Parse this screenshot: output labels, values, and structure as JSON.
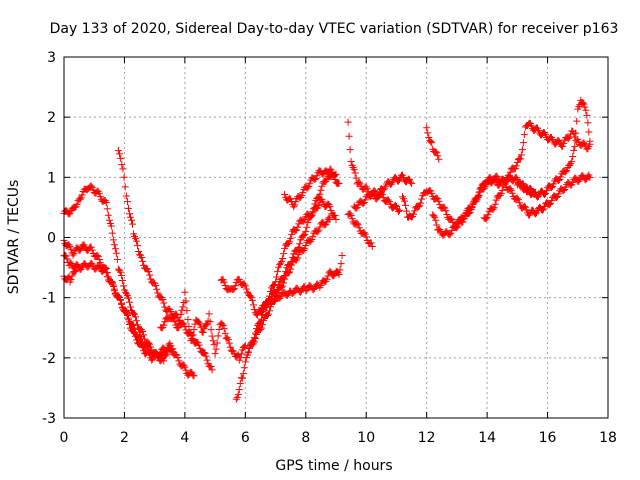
{
  "chart_data": {
    "type": "scatter",
    "title": "Day 133 of 2020, Sidereal Day-to-day VTEC variation (SDTVAR) for receiver p163",
    "xlabel": "GPS time / hours",
    "ylabel": "SDTVAR / TECUs",
    "xlim": [
      0,
      18
    ],
    "ylim": [
      -3,
      3
    ],
    "xticks": [
      "0",
      "2",
      "4",
      "6",
      "8",
      "10",
      "12",
      "14",
      "16",
      "18"
    ],
    "yticks": [
      "-3",
      "-2",
      "-1",
      "0",
      "1",
      "2",
      "3"
    ],
    "grid": true,
    "marker": "+",
    "color": "#ff0000",
    "series": [
      {
        "name": "arc-1",
        "points": [
          [
            0.0,
            0.4
          ],
          [
            0.3,
            0.45
          ],
          [
            0.5,
            0.65
          ],
          [
            0.8,
            0.85
          ],
          [
            1.1,
            0.75
          ],
          [
            1.4,
            0.55
          ],
          [
            1.6,
            0.1
          ],
          [
            1.8,
            -0.5
          ],
          [
            2.1,
            -1.0
          ],
          [
            2.4,
            -1.4
          ],
          [
            2.7,
            -1.7
          ],
          [
            3.0,
            -1.95
          ],
          [
            3.3,
            -2.05
          ]
        ]
      },
      {
        "name": "arc-2",
        "points": [
          [
            0.0,
            -0.05
          ],
          [
            0.3,
            -0.25
          ],
          [
            0.6,
            -0.15
          ],
          [
            0.9,
            -0.2
          ],
          [
            1.2,
            -0.4
          ],
          [
            1.5,
            -0.7
          ],
          [
            1.8,
            -1.0
          ],
          [
            2.1,
            -1.3
          ],
          [
            2.4,
            -1.6
          ],
          [
            2.7,
            -1.8
          ],
          [
            3.0,
            -1.95
          ],
          [
            3.3,
            -1.95
          ],
          [
            3.6,
            -1.85
          ]
        ]
      },
      {
        "name": "arc-3",
        "points": [
          [
            0.0,
            -0.3
          ],
          [
            0.2,
            -0.45
          ],
          [
            0.5,
            -0.5
          ],
          [
            0.8,
            -0.45
          ],
          [
            1.1,
            -0.5
          ],
          [
            1.4,
            -0.55
          ],
          [
            1.7,
            -0.9
          ],
          [
            2.0,
            -1.2
          ],
          [
            2.3,
            -1.6
          ],
          [
            2.6,
            -1.85
          ],
          [
            2.9,
            -2.0
          ],
          [
            3.2,
            -1.9
          ],
          [
            3.5,
            -1.8
          ],
          [
            3.8,
            -2.05
          ],
          [
            4.1,
            -2.25
          ],
          [
            4.3,
            -2.3
          ]
        ]
      },
      {
        "name": "arc-4",
        "points": [
          [
            0.0,
            -0.65
          ],
          [
            0.2,
            -0.7
          ],
          [
            0.4,
            -0.55
          ]
        ]
      },
      {
        "name": "arc-5",
        "points": [
          [
            1.8,
            1.45
          ],
          [
            1.95,
            1.1
          ],
          [
            2.1,
            0.6
          ],
          [
            2.3,
            0.1
          ],
          [
            2.5,
            -0.3
          ],
          [
            2.8,
            -0.6
          ],
          [
            3.1,
            -0.9
          ],
          [
            3.4,
            -1.2
          ],
          [
            3.7,
            -1.3
          ],
          [
            4.0,
            -1.5
          ],
          [
            4.3,
            -1.7
          ],
          [
            4.6,
            -1.9
          ],
          [
            4.9,
            -2.2
          ]
        ]
      },
      {
        "name": "arc-6",
        "points": [
          [
            3.2,
            -1.5
          ],
          [
            3.5,
            -1.3
          ],
          [
            3.8,
            -1.5
          ],
          [
            4.0,
            -0.95
          ],
          [
            4.2,
            -1.7
          ],
          [
            4.4,
            -1.35
          ],
          [
            4.6,
            -1.6
          ],
          [
            4.8,
            -1.3
          ],
          [
            5.0,
            -1.9
          ],
          [
            5.2,
            -1.4
          ],
          [
            5.4,
            -1.7
          ],
          [
            5.6,
            -1.9
          ],
          [
            5.8,
            -2.0
          ],
          [
            6.0,
            -1.8
          ]
        ]
      },
      {
        "name": "arc-7",
        "points": [
          [
            5.2,
            -0.7
          ],
          [
            5.5,
            -0.9
          ],
          [
            5.8,
            -0.7
          ],
          [
            6.1,
            -0.9
          ],
          [
            6.4,
            -1.3
          ],
          [
            6.7,
            -1.1
          ],
          [
            7.0,
            -0.9
          ],
          [
            7.3,
            -0.6
          ],
          [
            7.6,
            -0.3
          ],
          [
            7.9,
            0.0
          ],
          [
            8.2,
            0.4
          ],
          [
            8.5,
            0.8
          ],
          [
            8.8,
            1.1
          ],
          [
            9.0,
            1.05
          ]
        ]
      },
      {
        "name": "arc-8",
        "points": [
          [
            5.7,
            -2.7
          ],
          [
            5.9,
            -2.3
          ],
          [
            6.1,
            -1.9
          ],
          [
            6.4,
            -1.5
          ],
          [
            6.7,
            -1.1
          ],
          [
            7.0,
            -0.7
          ],
          [
            7.3,
            -0.2
          ],
          [
            7.6,
            0.1
          ],
          [
            7.9,
            0.3
          ],
          [
            8.2,
            0.4
          ],
          [
            8.5,
            0.6
          ],
          [
            8.8,
            0.5
          ],
          [
            9.0,
            0.3
          ]
        ]
      },
      {
        "name": "arc-9",
        "points": [
          [
            6.1,
            -1.9
          ],
          [
            6.4,
            -1.6
          ],
          [
            6.7,
            -1.3
          ],
          [
            7.0,
            -1.0
          ],
          [
            7.3,
            -0.7
          ],
          [
            7.6,
            -0.4
          ],
          [
            7.9,
            -0.2
          ],
          [
            8.2,
            0.0
          ],
          [
            8.5,
            0.2
          ],
          [
            8.8,
            0.3
          ]
        ]
      },
      {
        "name": "arc-10",
        "points": [
          [
            7.3,
            0.7
          ],
          [
            7.6,
            0.55
          ],
          [
            7.9,
            0.75
          ],
          [
            8.2,
            0.95
          ],
          [
            8.5,
            1.1
          ],
          [
            8.8,
            1.05
          ],
          [
            9.1,
            0.9
          ]
        ]
      },
      {
        "name": "arc-11",
        "points": [
          [
            6.5,
            -1.2
          ],
          [
            7.0,
            -1.0
          ],
          [
            7.5,
            -0.9
          ],
          [
            8.0,
            -0.85
          ],
          [
            8.5,
            -0.8
          ],
          [
            8.8,
            -0.6
          ],
          [
            9.1,
            -0.6
          ],
          [
            9.2,
            -0.3
          ]
        ]
      },
      {
        "name": "arc-12",
        "points": [
          [
            9.4,
            1.9
          ],
          [
            9.5,
            1.3
          ],
          [
            9.7,
            0.9
          ],
          [
            10.0,
            0.8
          ],
          [
            10.3,
            0.65
          ],
          [
            10.6,
            0.85
          ],
          [
            10.9,
            0.95
          ],
          [
            11.2,
            1.0
          ],
          [
            11.5,
            0.9
          ]
        ]
      },
      {
        "name": "arc-13",
        "points": [
          [
            9.4,
            0.4
          ],
          [
            9.7,
            0.2
          ],
          [
            10.0,
            0.0
          ],
          [
            10.2,
            -0.15
          ]
        ]
      },
      {
        "name": "arc-14",
        "points": [
          [
            9.6,
            0.5
          ],
          [
            9.9,
            0.6
          ],
          [
            10.2,
            0.75
          ],
          [
            10.5,
            0.7
          ],
          [
            10.8,
            0.55
          ],
          [
            11.1,
            0.45
          ]
        ]
      },
      {
        "name": "arc-15",
        "points": [
          [
            11.2,
            0.7
          ],
          [
            11.4,
            0.3
          ],
          [
            11.7,
            0.5
          ],
          [
            12.0,
            0.8
          ],
          [
            12.3,
            0.65
          ],
          [
            12.6,
            0.45
          ],
          [
            12.9,
            0.2
          ],
          [
            13.2,
            0.3
          ],
          [
            13.5,
            0.5
          ],
          [
            13.8,
            0.8
          ],
          [
            14.1,
            0.95
          ],
          [
            14.4,
            0.9
          ],
          [
            14.7,
            1.0
          ],
          [
            15.0,
            0.95
          ],
          [
            15.3,
            0.8
          ],
          [
            15.6,
            0.75
          ]
        ]
      },
      {
        "name": "arc-16",
        "points": [
          [
            12.0,
            1.8
          ],
          [
            12.2,
            1.5
          ],
          [
            12.4,
            1.3
          ]
        ]
      },
      {
        "name": "arc-17",
        "points": [
          [
            12.2,
            0.4
          ],
          [
            12.4,
            0.1
          ],
          [
            12.7,
            0.05
          ],
          [
            13.0,
            0.2
          ],
          [
            13.3,
            0.4
          ],
          [
            13.6,
            0.6
          ],
          [
            13.9,
            0.9
          ],
          [
            14.2,
            1.0
          ],
          [
            14.5,
            0.95
          ],
          [
            14.8,
            0.75
          ],
          [
            15.1,
            0.55
          ],
          [
            15.4,
            0.4
          ],
          [
            15.7,
            0.45
          ],
          [
            16.0,
            0.55
          ],
          [
            16.3,
            0.7
          ],
          [
            16.6,
            0.85
          ],
          [
            16.9,
            0.95
          ],
          [
            17.2,
            1.0
          ],
          [
            17.4,
            1.0
          ]
        ]
      },
      {
        "name": "arc-18",
        "points": [
          [
            13.9,
            0.3
          ],
          [
            14.2,
            0.5
          ],
          [
            14.5,
            0.8
          ],
          [
            14.8,
            1.1
          ],
          [
            15.1,
            1.3
          ],
          [
            15.3,
            1.9
          ],
          [
            15.6,
            1.8
          ],
          [
            15.9,
            1.7
          ],
          [
            16.2,
            1.6
          ],
          [
            16.5,
            1.55
          ],
          [
            16.8,
            1.75
          ],
          [
            17.0,
            1.6
          ],
          [
            17.3,
            1.5
          ],
          [
            17.4,
            1.55
          ]
        ]
      },
      {
        "name": "arc-19",
        "points": [
          [
            15.0,
            0.9
          ],
          [
            15.3,
            0.8
          ],
          [
            15.6,
            0.7
          ],
          [
            15.9,
            0.75
          ],
          [
            16.2,
            0.9
          ],
          [
            16.5,
            1.05
          ],
          [
            16.7,
            1.2
          ],
          [
            16.8,
            1.3
          ],
          [
            16.9,
            1.5
          ],
          [
            17.0,
            2.1
          ],
          [
            17.1,
            2.3
          ],
          [
            17.2,
            2.25
          ],
          [
            17.3,
            2.0
          ],
          [
            17.4,
            1.6
          ]
        ]
      }
    ]
  }
}
